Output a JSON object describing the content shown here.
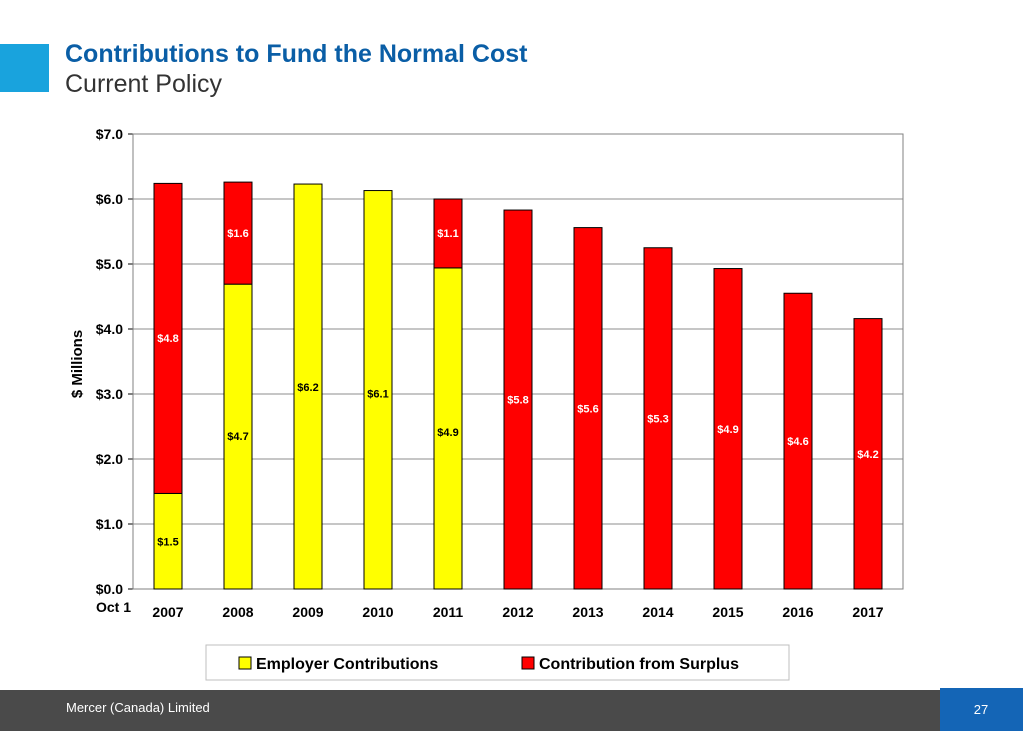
{
  "header": {
    "title": "Contributions to Fund the Normal Cost",
    "subtitle": "Current Policy"
  },
  "footer": {
    "company": "Mercer (Canada) Limited",
    "page_number": "27"
  },
  "chart_data": {
    "type": "bar",
    "stacked": true,
    "categories": [
      "2007",
      "2008",
      "2009",
      "2010",
      "2011",
      "2012",
      "2013",
      "2014",
      "2015",
      "2016",
      "2017"
    ],
    "x_prefix_label": "Oct 1",
    "series": [
      {
        "name": "Employer Contributions",
        "color": "#ffff00",
        "values": [
          1.47,
          4.69,
          6.23,
          6.13,
          4.94,
          0,
          0,
          0,
          0,
          0,
          0
        ],
        "labels": [
          "$1.5",
          "$4.7",
          "$6.2",
          "$6.1",
          "$4.9",
          "",
          "",
          "",
          "",
          "",
          ""
        ]
      },
      {
        "name": "Contribution from Surplus",
        "color": "#ff0000",
        "values": [
          4.77,
          1.57,
          0,
          0,
          1.06,
          5.83,
          5.56,
          5.25,
          4.93,
          4.55,
          4.16
        ],
        "labels": [
          "$4.8",
          "$1.6",
          "",
          "",
          "$1.1",
          "$5.8",
          "$5.6",
          "$5.3",
          "$4.9",
          "$4.6",
          "$4.2"
        ]
      }
    ],
    "ylabel": "$ Millions",
    "ylim": [
      0,
      7
    ],
    "yticks": [
      "$0.0",
      "$1.0",
      "$2.0",
      "$3.0",
      "$4.0",
      "$5.0",
      "$6.0",
      "$7.0"
    ],
    "grid": true,
    "legend_position": "bottom"
  }
}
